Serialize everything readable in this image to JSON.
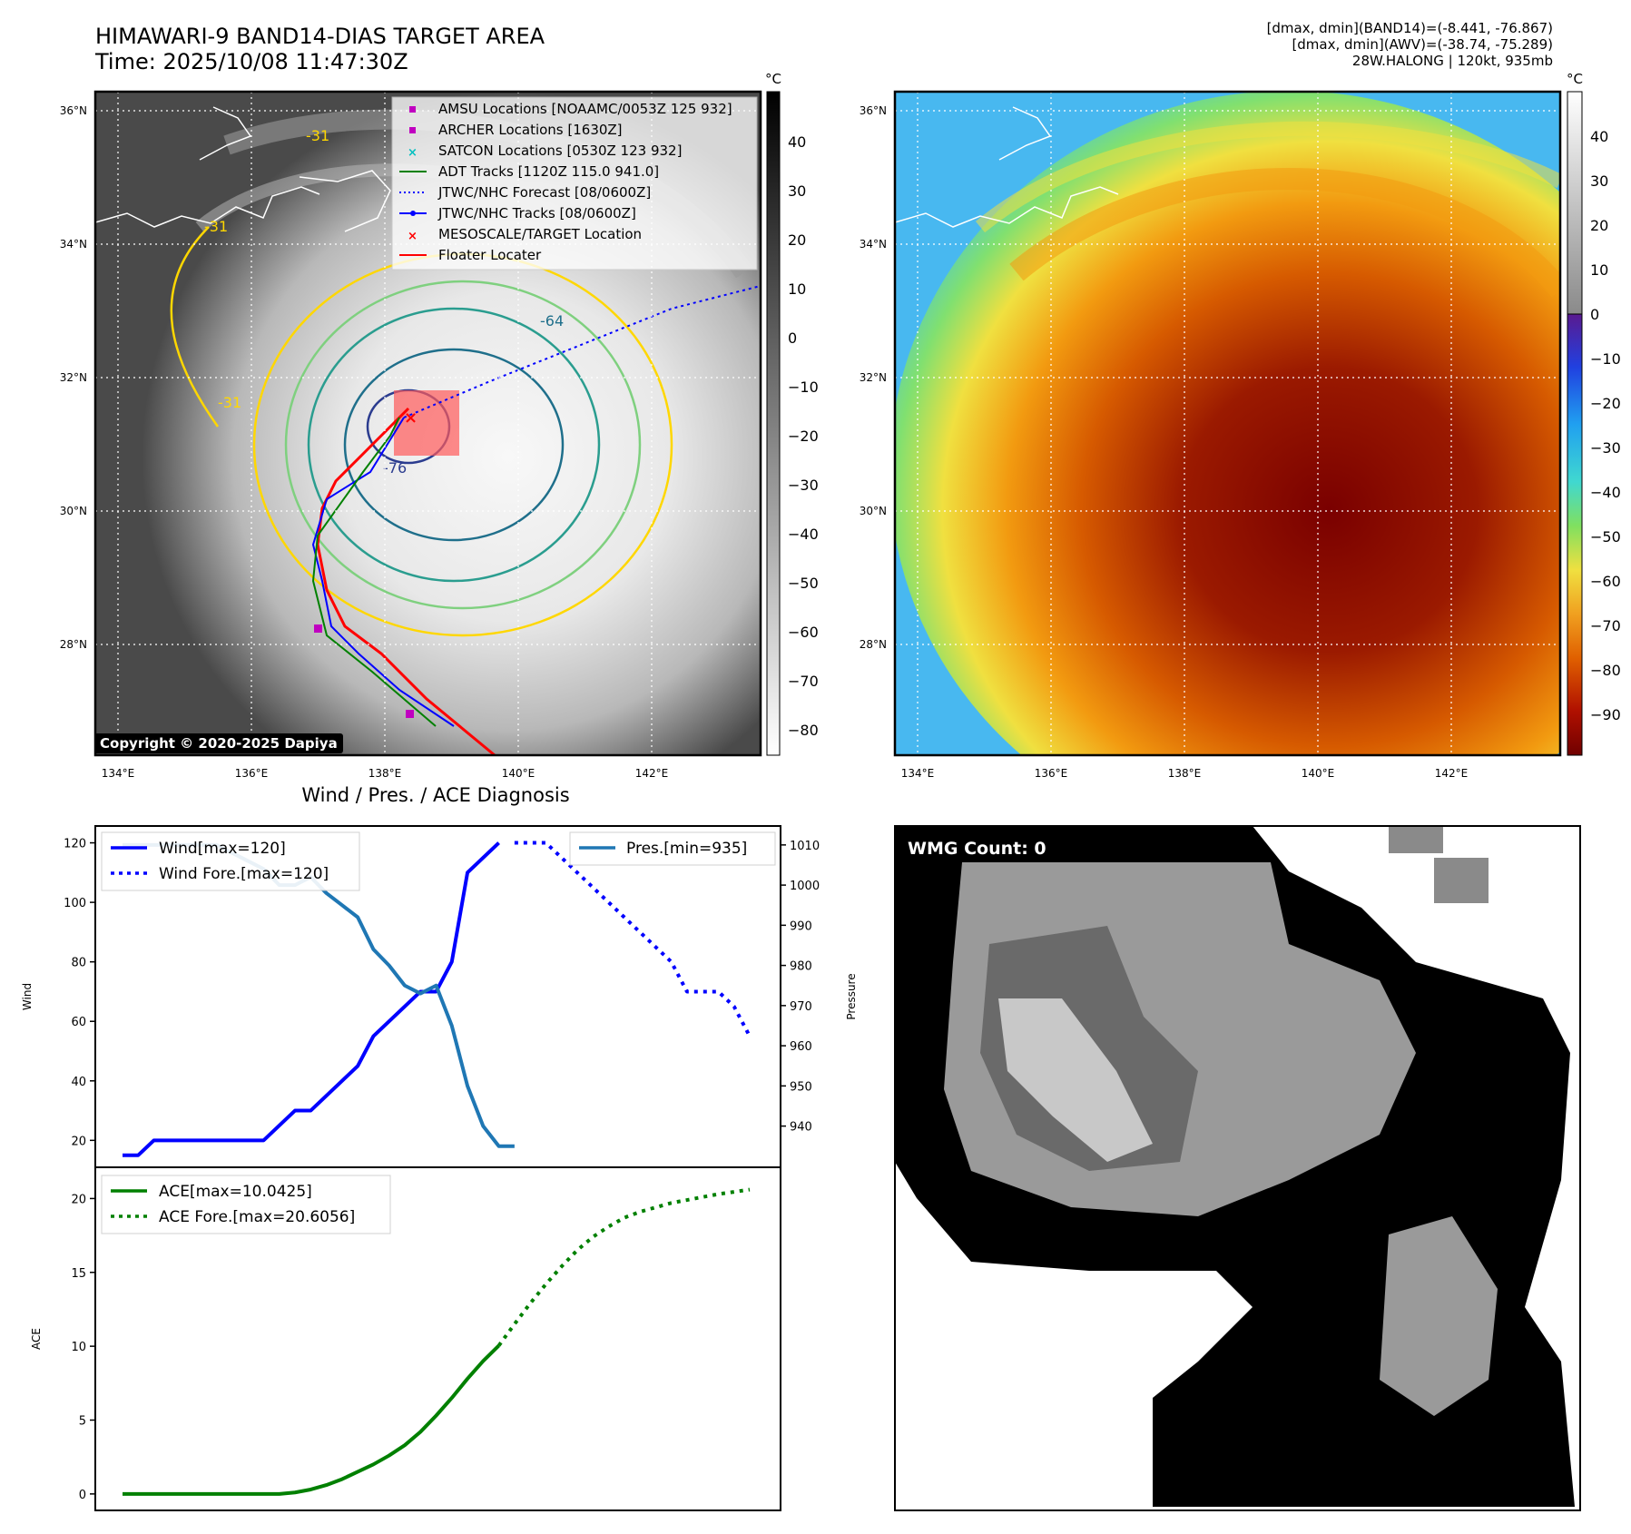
{
  "header": {
    "title_line1": "HIMAWARI-9 BAND14-DIAS TARGET AREA",
    "title_line2": "Time: 2025/10/08 11:47:30Z",
    "info_line1": "[dmax, dmin](BAND14)=(-8.441, -76.867)",
    "info_line2": "[dmax, dmin](AWV)=(-38.74, -75.289)",
    "info_line3": "28W.HALONG | 120kt, 935mb"
  },
  "ir_map": {
    "lat_labels": [
      "36°N",
      "34°N",
      "32°N",
      "30°N",
      "28°N"
    ],
    "lon_labels": [
      "134°E",
      "136°E",
      "138°E",
      "140°E",
      "142°E"
    ],
    "contour_labels": [
      "-64",
      "-76",
      "-31",
      "-31",
      "-31"
    ],
    "copyright": "Copyright © 2020-2025 Dapiya",
    "colorbar_unit": "°C",
    "colorbar_ticks": [
      "40",
      "30",
      "20",
      "10",
      "0",
      "−10",
      "−20",
      "−30",
      "−40",
      "−50",
      "−60",
      "−70",
      "−80"
    ],
    "legend": [
      {
        "label": "AMSU Locations [NOAAMC/0053Z 125 932]",
        "marker": "square",
        "color": "#c000c0"
      },
      {
        "label": "ARCHER Locations [1630Z]",
        "marker": "square",
        "color": "#c000c0"
      },
      {
        "label": "SATCON Locations [0530Z 123 932]",
        "marker": "x",
        "color": "#00c0c0"
      },
      {
        "label": "ADT Tracks [1120Z 115.0 941.0]",
        "marker": "line",
        "color": "#008000"
      },
      {
        "label": "JTWC/NHC Forecast [08/0600Z]",
        "marker": "dotted",
        "color": "#0000ff"
      },
      {
        "label": "JTWC/NHC Tracks [08/0600Z]",
        "marker": "line-dot",
        "color": "#0000ff"
      },
      {
        "label": "MESOSCALE/TARGET Location",
        "marker": "x",
        "color": "#ff0000"
      },
      {
        "label": "Floater Locater",
        "marker": "line",
        "color": "#ff0000"
      }
    ]
  },
  "awv_map": {
    "lat_labels": [
      "36°N",
      "34°N",
      "32°N",
      "30°N",
      "28°N"
    ],
    "lon_labels": [
      "134°E",
      "136°E",
      "138°E",
      "140°E",
      "142°E"
    ],
    "colorbar_unit": "°C",
    "colorbar_ticks": [
      "40",
      "30",
      "20",
      "10",
      "0",
      "−10",
      "−20",
      "−30",
      "−40",
      "−50",
      "−60",
      "−70",
      "−80",
      "−90"
    ]
  },
  "diagnosis": {
    "title": "Wind / Pres. / ACE Diagnosis",
    "wind_ylabel": "Wind",
    "pres_ylabel": "Pressure",
    "ace_ylabel": "ACE",
    "legend_wind": "Wind[max=120]",
    "legend_wind_fore": "Wind Fore.[max=120]",
    "legend_pres": "Pres.[min=935]",
    "legend_ace": "ACE[max=10.0425]",
    "legend_ace_fore": "ACE Fore.[max=20.6056]",
    "wind_ticks": [
      "20",
      "40",
      "60",
      "80",
      "100",
      "120"
    ],
    "pres_ticks": [
      "940",
      "950",
      "960",
      "970",
      "980",
      "990",
      "1000",
      "1010"
    ],
    "ace_ticks": [
      "0",
      "5",
      "10",
      "15",
      "20"
    ]
  },
  "wmg": {
    "label": "WMG Count: 0"
  },
  "colors": {
    "wind": "#0000ff",
    "pressure": "#1f77b4",
    "ace": "#008000"
  },
  "chart_data": [
    {
      "type": "line",
      "name": "wind",
      "x": [
        0,
        1,
        2,
        3,
        4,
        5,
        6,
        7,
        8,
        9,
        10,
        11,
        12,
        13,
        14,
        15,
        16,
        17,
        18,
        19,
        20,
        21,
        22,
        23,
        24
      ],
      "series": [
        {
          "name": "Wind[max=120]",
          "values": [
            15,
            15,
            20,
            20,
            20,
            20,
            20,
            20,
            20,
            20,
            25,
            30,
            30,
            35,
            40,
            45,
            55,
            60,
            65,
            70,
            70,
            80,
            110,
            115,
            120
          ],
          "style": "solid",
          "color": "#0000ff"
        }
      ],
      "ylim": [
        14,
        122
      ]
    },
    {
      "type": "line",
      "name": "wind_forecast",
      "x": [
        25,
        26,
        27,
        28,
        29,
        30,
        31,
        32,
        33,
        34,
        35,
        36,
        37,
        38,
        39,
        40
      ],
      "series": [
        {
          "name": "Wind Fore.[max=120]",
          "values": [
            120,
            120,
            120,
            115,
            110,
            105,
            100,
            95,
            90,
            85,
            80,
            70,
            70,
            70,
            65,
            55
          ],
          "style": "dotted",
          "color": "#0000ff"
        }
      ]
    },
    {
      "type": "line",
      "name": "pressure",
      "x": [
        0,
        1,
        2,
        3,
        4,
        5,
        6,
        7,
        8,
        9,
        10,
        11,
        12,
        13,
        14,
        15,
        16,
        17,
        18,
        19,
        20,
        21,
        22,
        23,
        24,
        25
      ],
      "series": [
        {
          "name": "Pres.[min=935]",
          "values": [
            1010,
            1010,
            1010,
            1010,
            1010,
            1010,
            1010,
            1008,
            1006,
            1004,
            1000,
            1000,
            1002,
            998,
            995,
            992,
            984,
            980,
            975,
            973,
            975,
            965,
            950,
            940,
            935,
            935
          ],
          "color": "#1f77b4"
        }
      ],
      "ylim": [
        932,
        1012
      ]
    },
    {
      "type": "line",
      "name": "ace",
      "x": [
        0,
        1,
        2,
        3,
        4,
        5,
        6,
        7,
        8,
        9,
        10,
        11,
        12,
        13,
        14,
        15,
        16,
        17,
        18,
        19,
        20,
        21,
        22,
        23,
        24
      ],
      "series": [
        {
          "name": "ACE[max=10.0425]",
          "values": [
            0,
            0,
            0,
            0,
            0,
            0,
            0,
            0,
            0,
            0,
            0,
            0.1,
            0.3,
            0.6,
            1.0,
            1.5,
            2.0,
            2.6,
            3.3,
            4.2,
            5.3,
            6.5,
            7.8,
            9.0,
            10.0425
          ],
          "color": "#008000"
        }
      ],
      "ylim": [
        -0.5,
        21.5
      ]
    },
    {
      "type": "line",
      "name": "ace_forecast",
      "x": [
        24,
        25,
        26,
        27,
        28,
        29,
        30,
        31,
        32,
        33,
        34,
        35,
        36,
        37,
        38,
        39,
        40
      ],
      "series": [
        {
          "name": "ACE Fore.[max=20.6056]",
          "values": [
            10.0425,
            11.5,
            12.9,
            14.2,
            15.4,
            16.5,
            17.4,
            18.1,
            18.7,
            19.1,
            19.4,
            19.7,
            19.9,
            20.1,
            20.3,
            20.45,
            20.6056
          ],
          "style": "dotted",
          "color": "#008000"
        }
      ]
    }
  ]
}
